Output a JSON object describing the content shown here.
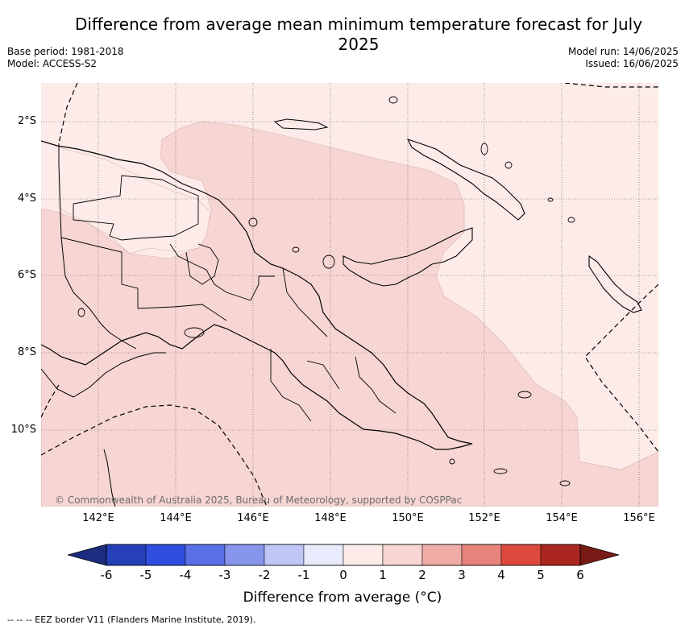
{
  "title": "Difference from average mean minimum temperature forecast for July 2025",
  "base_period": "Base period: 1981-2018",
  "model": "Model: ACCESS-S2",
  "model_run": "Model run: 14/06/2025",
  "issued": "Issued: 16/06/2025",
  "copyright": "© Commonwealth of Australia 2025, Bureau of Meteorology, supported by COSPPac",
  "lat_labels": [
    "2°S",
    "4°S",
    "6°S",
    "8°S",
    "10°S"
  ],
  "lon_labels": [
    "142°E",
    "144°E",
    "146°E",
    "148°E",
    "150°E",
    "152°E",
    "154°E",
    "156°E"
  ],
  "colorbar": {
    "label": "Difference from average (°C)",
    "ticks": [
      "-6",
      "-5",
      "-4",
      "-3",
      "-2",
      "-1",
      "0",
      "1",
      "2",
      "3",
      "4",
      "5",
      "6"
    ],
    "colors": [
      "#1c2d80",
      "#2540b8",
      "#2f4fe0",
      "#5a70e6",
      "#8796ec",
      "#c0c6f5",
      "#e8ebfb",
      "#fcebe8",
      "#f6d5d2",
      "#efaba5",
      "#e7837b",
      "#dc4a3d",
      "#ac2620",
      "#7a1a16"
    ]
  },
  "legend_text": "--  --  -- EEZ border V11 (Flanders Marine Institute, 2019).",
  "fill_colors": {
    "light": "#fcebe8",
    "medium": "#f6d5d2"
  }
}
